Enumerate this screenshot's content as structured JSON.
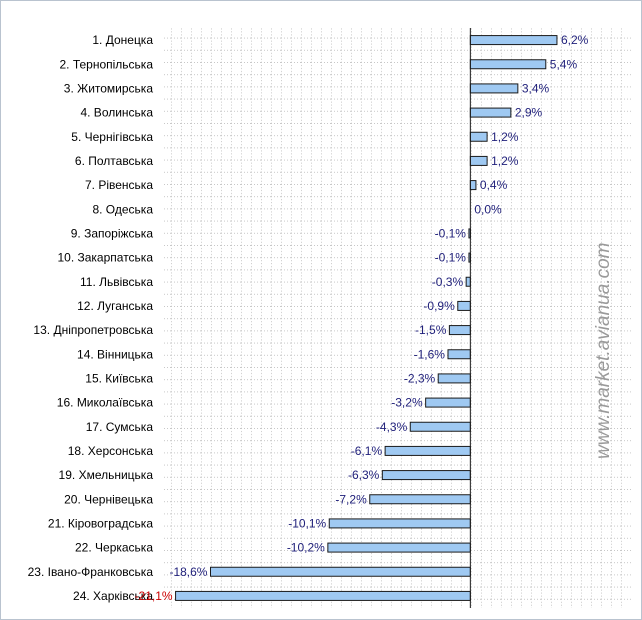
{
  "chart_data": {
    "type": "bar",
    "orientation": "horizontal",
    "categories": [
      "1. Донецка",
      "2. Тернопільська",
      "3. Житомирська",
      "4. Волинська",
      "5. Чернігівська",
      "6. Полтавська",
      "7. Рівенська",
      "8. Одеська",
      "9. Запоріжська",
      "10. Закарпатська",
      "11. Львівська",
      "12. Луганська",
      "13. Дніпропетровська",
      "14. Вінницька",
      "15. Київська",
      "16. Миколаївська",
      "17. Сумська",
      "18. Херсонська",
      "19. Хмельницька",
      "20. Чернівецька",
      "21. Кіровоградська",
      "22. Черкаська",
      "23. Івано-Франковська",
      "24. Харківська"
    ],
    "values": [
      6.2,
      5.4,
      3.4,
      2.9,
      1.2,
      1.2,
      0.4,
      0.0,
      -0.1,
      -0.1,
      -0.3,
      -0.9,
      -1.5,
      -1.6,
      -2.3,
      -3.2,
      -4.3,
      -6.1,
      -6.3,
      -7.2,
      -10.1,
      -10.2,
      -18.6,
      -21.1
    ],
    "value_labels": [
      "6,2%",
      "5,4%",
      "3,4%",
      "2,9%",
      "1,2%",
      "1,2%",
      "0,4%",
      "0,0%",
      "-0,1%",
      "-0,1%",
      "-0,3%",
      "-0,9%",
      "-1,5%",
      "-1,6%",
      "-2,3%",
      "-3,2%",
      "-4,3%",
      "-6,1%",
      "-6,3%",
      "-7,2%",
      "-10,1%",
      "-10,2%",
      "-18,6%",
      "-21,1%"
    ],
    "highlight_label_color": "#cc0000",
    "highlight_index": 23,
    "xlim": [
      -22.0,
      11.5
    ],
    "grid": true,
    "bar_color": "#9fc9f2",
    "bar_edge_color": "#1a1a1a",
    "label_color": "#1f1f7a",
    "watermark": "www.market.avianua.com"
  }
}
